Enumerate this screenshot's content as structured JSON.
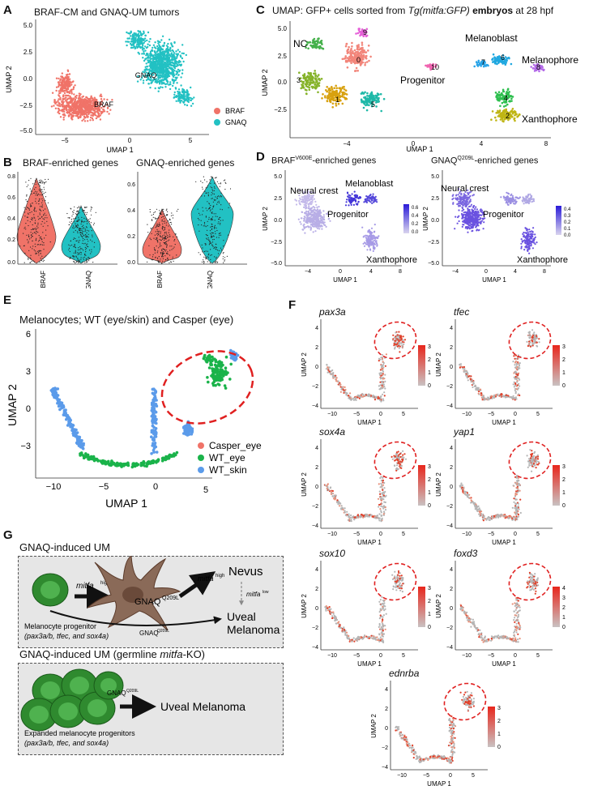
{
  "panels": {
    "A": {
      "label": "A",
      "title": "BRAF-CM and GNAQ-UM tumors",
      "xlabel": "UMAP 1",
      "ylabel": "UMAP 2",
      "xticks": [
        "−5",
        "0",
        "5"
      ],
      "yticks": [
        "5.0",
        "2.5",
        "0.0",
        "−2.5",
        "−5.0"
      ],
      "cluster_labels": [
        "GNAQ",
        "BRAF"
      ],
      "legend": [
        {
          "name": "BRAF",
          "color": "#f07368"
        },
        {
          "name": "GNAQ",
          "color": "#22c1c3"
        }
      ]
    },
    "B": {
      "label": "B",
      "left_title": "BRAF-enriched genes",
      "right_title": "GNAQ-enriched genes",
      "left_yticks": [
        "0.8",
        "0.6",
        "0.4",
        "0.2",
        "0.0"
      ],
      "right_yticks": [
        "0.6",
        "0.4",
        "0.2",
        "0.0"
      ],
      "categories": [
        "BRAF",
        "GNAQ"
      ]
    },
    "C": {
      "label": "C",
      "title_pre": "UMAP: GFP+ cells sorted from ",
      "title_italic": "Tg(mitfa:GFP)",
      "title_bold": " embryos",
      "title_post": " at 28 hpf",
      "xlabel": "UMAP 1",
      "ylabel": "UMAP 2",
      "xticks": [
        "−4",
        "0",
        "4",
        "8"
      ],
      "yticks": [
        "5.0",
        "2.5",
        "0.0",
        "−2.5"
      ],
      "region_labels": [
        "NC",
        "Melanoblast",
        "Melanophore",
        "Progenitor",
        "Xanthophore"
      ],
      "cluster_ids": [
        "0",
        "1",
        "2",
        "3",
        "4",
        "5",
        "6",
        "7",
        "8",
        "9",
        "10"
      ]
    },
    "D": {
      "label": "D",
      "left_title_pre": "BRAF",
      "left_title_sup": "V600E",
      "left_title_post": "-enriched genes",
      "right_title_pre": "GNAQ",
      "right_title_sup": "Q209L",
      "right_title_post": "-enriched genes",
      "xlabel": "UMAP 1",
      "ylabel": "UMAP 2",
      "xticks": [
        "−4",
        "0",
        "4",
        "8"
      ],
      "yticks": [
        "5.0",
        "2.5",
        "0.0",
        "−2.5",
        "−5.0"
      ],
      "left_labels": [
        "Neural crest",
        "Melanoblast",
        "Progenitor",
        "Xanthophore"
      ],
      "right_labels": [
        "Neural crest",
        "Progenitor",
        "Xanthophore"
      ],
      "left_scale": [
        "0.6",
        "0.4",
        "0.2",
        "0.0"
      ],
      "right_scale": [
        "0.4",
        "0.3",
        "0.2",
        "0.1",
        "0.0"
      ]
    },
    "E": {
      "label": "E",
      "title": "Melanocytes; WT (eye/skin) and Casper (eye)",
      "xlabel": "UMAP 1",
      "ylabel": "UMAP 2",
      "xticks": [
        "−10",
        "−5",
        "0",
        "5"
      ],
      "yticks": [
        "6",
        "3",
        "0",
        "−3"
      ],
      "legend": [
        {
          "name": "Casper_eye",
          "color": "#f07368"
        },
        {
          "name": "WT_eye",
          "color": "#1ab34a"
        },
        {
          "name": "WT_skin",
          "color": "#5b9bea"
        }
      ]
    },
    "F": {
      "label": "F",
      "genes": [
        "pax3a",
        "tfec",
        "sox4a",
        "yap1",
        "sox10",
        "foxd3",
        "ednrba"
      ],
      "xlabel": "UMAP 1",
      "ylabel": "UMAP 2",
      "xticks": [
        "−10",
        "−5",
        "0",
        "5"
      ],
      "yticks": [
        "4",
        "2",
        "0",
        "−2",
        "−4"
      ],
      "scales": [
        [
          "3",
          "2",
          "1",
          "0"
        ],
        [
          "3",
          "2",
          "1",
          "0"
        ],
        [
          "3",
          "2",
          "1",
          "0"
        ],
        [
          "3",
          "2",
          "1",
          "0"
        ],
        [
          "3",
          "2",
          "1",
          "0"
        ],
        [
          "4",
          "3",
          "2",
          "1",
          "0"
        ],
        [
          "3",
          "2",
          "1",
          "0"
        ]
      ]
    },
    "G": {
      "label": "G",
      "box1_title": "GNAQ-induced UM",
      "mitfa": "mitfa",
      "high": "high",
      "low": "low",
      "gnaq": "GNAQ",
      "q209l": "Q209L",
      "nevus": "Nevus",
      "uveal": "Uveal",
      "melanoma": "Melanoma",
      "uveal_melanoma": "Uveal Melanoma",
      "progenitor": "Melanocyte progenitor",
      "markers": "(pax3a/b, tfec, and sox4a)",
      "box2_title_pre": "GNAQ-induced UM (germline ",
      "box2_title_italic": "mitfa",
      "box2_title_post": "-KO)",
      "expanded": "Expanded melanocyte progenitors"
    }
  }
}
